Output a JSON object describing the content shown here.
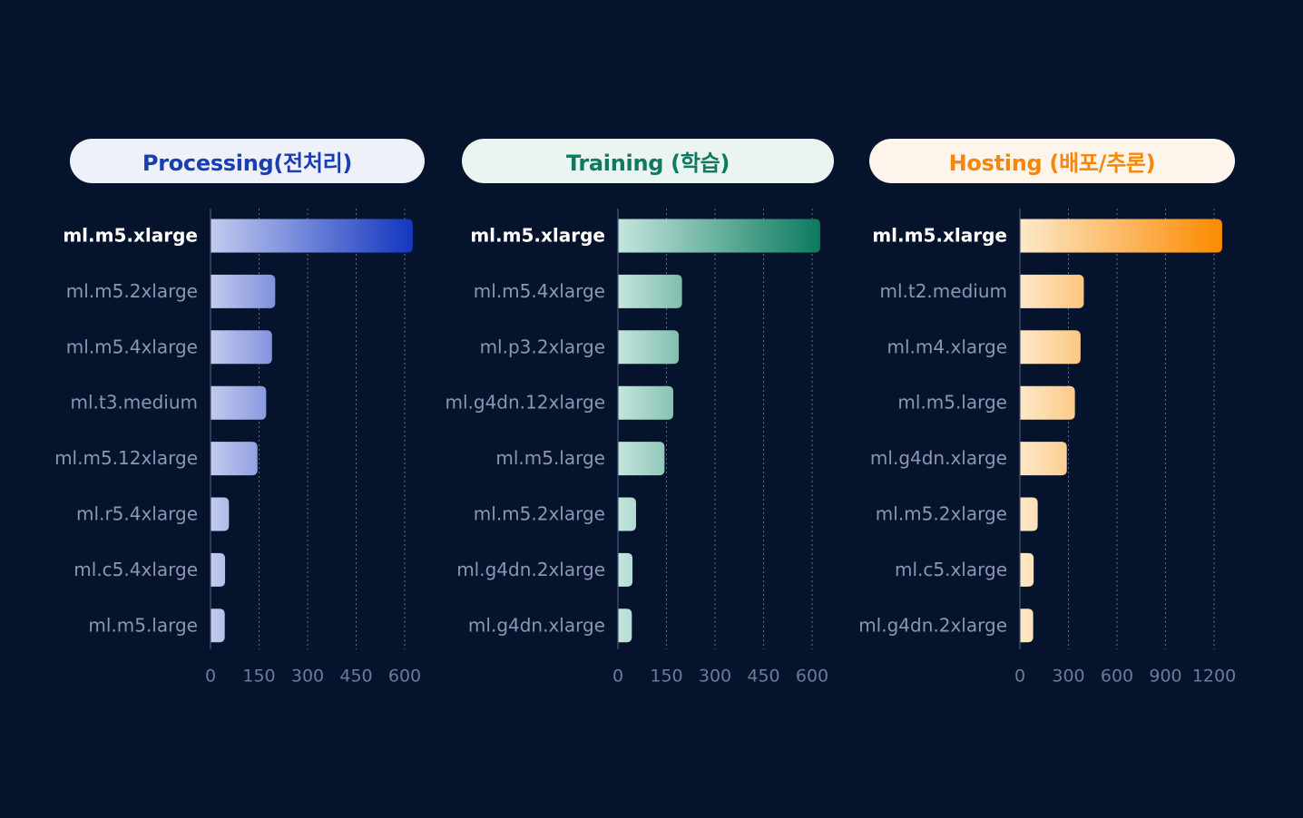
{
  "chart_data": [
    {
      "type": "bar",
      "orientation": "horizontal",
      "title": "Processing(전처리)",
      "categories": [
        "ml.m5.xlarge",
        "ml.m5.2xlarge",
        "ml.m5.4xlarge",
        "ml.t3.medium",
        "ml.m5.12xlarge",
        "ml.r5.4xlarge",
        "ml.c5.4xlarge",
        "ml.m5.large"
      ],
      "values": [
        625,
        200,
        190,
        172,
        145,
        57,
        45,
        44
      ],
      "xlim": [
        0,
        600
      ],
      "xticks": [
        "0",
        "150",
        "300",
        "450",
        "600"
      ],
      "grid": "vertical-dotted",
      "colors": {
        "title_text": "#1a3db5",
        "title_bg": "#eef1f9",
        "bar_light": "#c3cbef",
        "bar_strong": "#1236c0"
      }
    },
    {
      "type": "bar",
      "orientation": "horizontal",
      "title": "Training (학습)",
      "categories": [
        "ml.m5.xlarge",
        "ml.m5.4xlarge",
        "ml.p3.2xlarge",
        "ml.g4dn.12xlarge",
        "ml.m5.large",
        "ml.m5.2xlarge",
        "ml.g4dn.2xlarge",
        "ml.g4dn.xlarge"
      ],
      "values": [
        625,
        198,
        188,
        171,
        144,
        56,
        45,
        43
      ],
      "xlim": [
        0,
        600
      ],
      "xticks": [
        "0",
        "150",
        "300",
        "450",
        "600"
      ],
      "grid": "vertical-dotted",
      "colors": {
        "title_text": "#0f7a5f",
        "title_bg": "#eaf5f2",
        "bar_light": "#c4e6dd",
        "bar_strong": "#0b7a5e"
      }
    },
    {
      "type": "bar",
      "orientation": "horizontal",
      "title": "Hosting (배포/추론)",
      "categories": [
        "ml.m5.xlarge",
        "ml.t2.medium",
        "ml.m4.xlarge",
        "ml.m5.large",
        "ml.g4dn.xlarge",
        "ml.m5.2xlarge",
        "ml.c5.xlarge",
        "ml.g4dn.2xlarge"
      ],
      "values": [
        1250,
        395,
        375,
        340,
        290,
        110,
        85,
        82
      ],
      "xlim": [
        0,
        1200
      ],
      "xticks": [
        "0",
        "300",
        "600",
        "900",
        "1200"
      ],
      "grid": "vertical-dotted",
      "colors": {
        "title_text": "#f5870a",
        "title_bg": "#fdf5ec",
        "bar_light": "#fde9c9",
        "bar_strong": "#fb8a00"
      }
    }
  ],
  "style": {
    "background": "#06132c",
    "label_dim": "#8b96b3",
    "label_highlight": "#ffffff",
    "tick_color": "#6e7a99",
    "axis_color": "#4a5675",
    "grid_color": "#7a86a6"
  }
}
